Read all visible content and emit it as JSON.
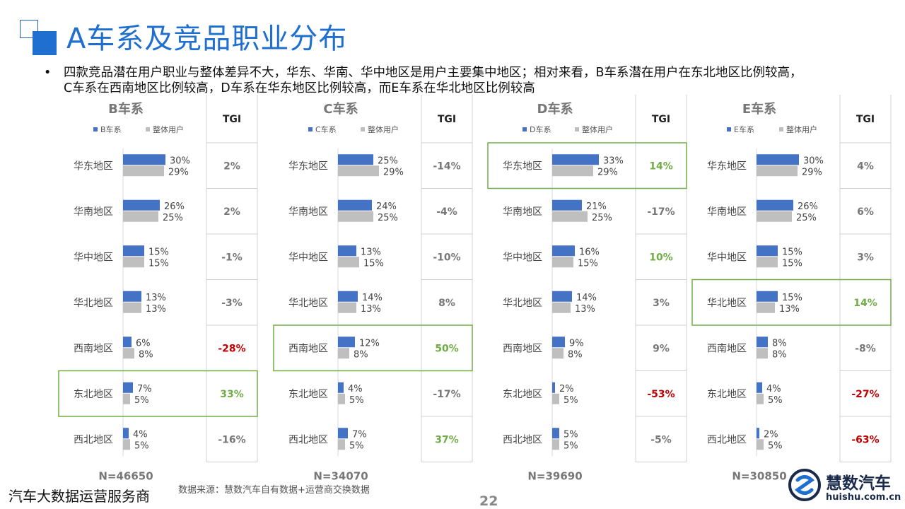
{
  "title": "A车系及竞品职业分布",
  "summary": "四款竞品潜在用户职业与整体差异不大，华东、华南、华中地区是用户主要集中地区；相对来看，B车系潜在用户在东北地区比例较高，C车系在西南地区比例较高，D车系在华东地区比例较高，而E车系在华北地区比例较高",
  "footer": {
    "left_text": "汽车大数据运营服务商",
    "source": "数据来源：慧数汽车自有数据+运营商交换数据",
    "page_number": "22",
    "brand_name": "慧数汽车",
    "brand_url": "huishu.com.cn"
  },
  "colors": {
    "series_primary": "#4472c4",
    "series_overall": "#bfbfbf",
    "positive": "#70ad47",
    "negative": "#c00000",
    "neutral": "#777777",
    "highlight_box": "#70ad47",
    "title": "#1f6fd1"
  },
  "chart_data": [
    {
      "type": "bar",
      "title": "B车系",
      "categories": [
        "华东地区",
        "华南地区",
        "华中地区",
        "华北地区",
        "西南地区",
        "东北地区",
        "西北地区"
      ],
      "series": [
        {
          "name": "B车系",
          "values": [
            30,
            26,
            15,
            13,
            6,
            7,
            4
          ]
        },
        {
          "name": "整体用户",
          "values": [
            29,
            25,
            15,
            13,
            8,
            5,
            5
          ]
        }
      ],
      "value_labels": [
        [
          "30%",
          "26%",
          "15%",
          "13%",
          "6%",
          "7%",
          "4%"
        ],
        [
          "29%",
          "25%",
          "15%",
          "13%",
          "8%",
          "5%",
          "5%"
        ]
      ],
      "tgi_header": "TGI",
      "tgi": [
        "2%",
        "2%",
        "-1%",
        "-3%",
        "-28%",
        "33%",
        "-16%"
      ],
      "tgi_values": [
        2,
        2,
        -1,
        -3,
        -28,
        33,
        -16
      ],
      "highlight_index": 5,
      "n_label": "N=46650"
    },
    {
      "type": "bar",
      "title": "C车系",
      "categories": [
        "华东地区",
        "华南地区",
        "华中地区",
        "华北地区",
        "西南地区",
        "东北地区",
        "西北地区"
      ],
      "series": [
        {
          "name": "C车系",
          "values": [
            25,
            24,
            13,
            14,
            12,
            4,
            7
          ]
        },
        {
          "name": "整体用户",
          "values": [
            29,
            25,
            15,
            13,
            8,
            5,
            5
          ]
        }
      ],
      "value_labels": [
        [
          "25%",
          "24%",
          "13%",
          "14%",
          "12%",
          "4%",
          "7%"
        ],
        [
          "29%",
          "25%",
          "15%",
          "13%",
          "8%",
          "5%",
          "5%"
        ]
      ],
      "tgi_header": "TGI",
      "tgi": [
        "-14%",
        "-4%",
        "-10%",
        "8%",
        "50%",
        "-17%",
        "37%"
      ],
      "tgi_values": [
        -14,
        -4,
        -10,
        8,
        50,
        -17,
        37
      ],
      "highlight_index": 4,
      "n_label": "N=34070"
    },
    {
      "type": "bar",
      "title": "D车系",
      "categories": [
        "华东地区",
        "华南地区",
        "华中地区",
        "华北地区",
        "西南地区",
        "东北地区",
        "西北地区"
      ],
      "series": [
        {
          "name": "D车系",
          "values": [
            33,
            21,
            16,
            14,
            9,
            2,
            5
          ]
        },
        {
          "name": "整体用户",
          "values": [
            29,
            25,
            15,
            13,
            8,
            5,
            5
          ]
        }
      ],
      "value_labels": [
        [
          "33%",
          "21%",
          "16%",
          "14%",
          "9%",
          "2%",
          "5%"
        ],
        [
          "29%",
          "25%",
          "15%",
          "13%",
          "8%",
          "5%",
          "5%"
        ]
      ],
      "tgi_header": "TGI",
      "tgi": [
        "14%",
        "-17%",
        "10%",
        "3%",
        "9%",
        "-53%",
        "-5%"
      ],
      "tgi_values": [
        14,
        -17,
        10,
        3,
        9,
        -53,
        -5
      ],
      "highlight_index": 0,
      "n_label": "N=39690"
    },
    {
      "type": "bar",
      "title": "E车系",
      "categories": [
        "华东地区",
        "华南地区",
        "华中地区",
        "华北地区",
        "西南地区",
        "东北地区",
        "西北地区"
      ],
      "series": [
        {
          "name": "E车系",
          "values": [
            30,
            26,
            15,
            15,
            8,
            4,
            2
          ]
        },
        {
          "name": "整体用户",
          "values": [
            29,
            25,
            15,
            13,
            8,
            5,
            5
          ]
        }
      ],
      "value_labels": [
        [
          "30%",
          "26%",
          "15%",
          "15%",
          "8%",
          "4%",
          "2%"
        ],
        [
          "29%",
          "25%",
          "15%",
          "13%",
          "8%",
          "5%",
          "5%"
        ]
      ],
      "tgi_header": "TGI",
      "tgi": [
        "4%",
        "6%",
        "3%",
        "14%",
        "-8%",
        "-27%",
        "-63%"
      ],
      "tgi_values": [
        4,
        6,
        3,
        14,
        -8,
        -27,
        -63
      ],
      "highlight_index": 3,
      "n_label": "N=30850"
    }
  ]
}
